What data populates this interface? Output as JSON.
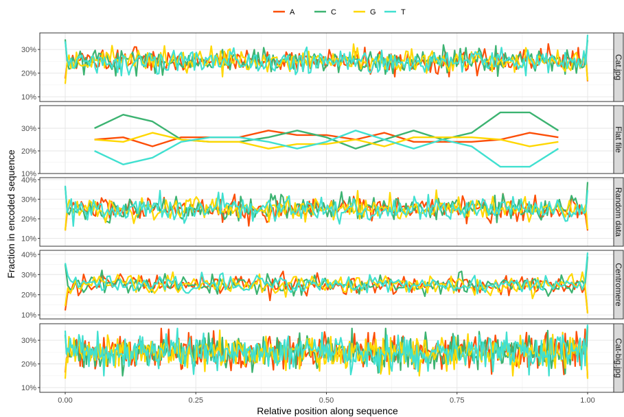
{
  "chart_data": {
    "type": "line",
    "xlabel": "Relative position along sequence",
    "ylabel": "Fraction in encoded sequence",
    "x_ticks": [
      "0.00",
      "0.25",
      "0.50",
      "0.75",
      "1.00"
    ],
    "xlim": [
      0,
      1
    ],
    "legend_position": "top",
    "grid": true,
    "series_names": [
      "A",
      "C",
      "G",
      "T"
    ],
    "colors": {
      "A": "#FC4E07",
      "C": "#3CB371",
      "G": "#FFD700",
      "T": "#40E0D0"
    },
    "panels": [
      {
        "label": "Cat.jpg",
        "ylim": [
          0.08,
          0.37
        ],
        "y_ticks": [
          "10%",
          "20%",
          "30%"
        ],
        "y_tick_values": [
          0.1,
          0.2,
          0.3
        ],
        "noisy": true,
        "n_points": 280,
        "mean": 0.25,
        "spread": 0.025,
        "range": [
          0.13,
          0.37
        ]
      },
      {
        "label": "Flat file",
        "ylim": [
          0.1,
          0.4
        ],
        "y_ticks": [
          "10%",
          "20%",
          "30%"
        ],
        "y_tick_values": [
          0.1,
          0.2,
          0.3
        ],
        "noisy": false,
        "x": [
          0.056,
          0.111,
          0.167,
          0.222,
          0.278,
          0.333,
          0.389,
          0.444,
          0.5,
          0.556,
          0.611,
          0.667,
          0.722,
          0.778,
          0.833,
          0.889,
          0.944
        ],
        "series": [
          {
            "name": "A",
            "values": [
              0.25,
              0.26,
              0.22,
              0.26,
              0.26,
              0.26,
              0.29,
              0.27,
              0.27,
              0.25,
              0.28,
              0.24,
              0.24,
              0.24,
              0.25,
              0.28,
              0.26
            ]
          },
          {
            "name": "C",
            "values": [
              0.3,
              0.36,
              0.33,
              0.25,
              0.24,
              0.24,
              0.26,
              0.29,
              0.26,
              0.21,
              0.25,
              0.29,
              0.25,
              0.28,
              0.37,
              0.37,
              0.29
            ]
          },
          {
            "name": "G",
            "values": [
              0.25,
              0.24,
              0.28,
              0.25,
              0.24,
              0.24,
              0.21,
              0.23,
              0.23,
              0.25,
              0.22,
              0.26,
              0.26,
              0.26,
              0.25,
              0.22,
              0.24
            ]
          },
          {
            "name": "T",
            "values": [
              0.2,
              0.14,
              0.17,
              0.24,
              0.26,
              0.26,
              0.24,
              0.21,
              0.24,
              0.29,
              0.25,
              0.21,
              0.25,
              0.22,
              0.13,
              0.13,
              0.21
            ]
          }
        ]
      },
      {
        "label": "Random data",
        "ylim": [
          0.06,
          0.41
        ],
        "y_ticks": [
          "10%",
          "20%",
          "30%",
          "40%"
        ],
        "y_tick_values": [
          0.1,
          0.2,
          0.3,
          0.4
        ],
        "noisy": true,
        "n_points": 260,
        "mean": 0.25,
        "spread": 0.03,
        "range": [
          0.14,
          0.4
        ]
      },
      {
        "label": "Centromere",
        "ylim": [
          0.08,
          0.42
        ],
        "y_ticks": [
          "10%",
          "20%",
          "30%",
          "40%"
        ],
        "y_tick_values": [
          0.1,
          0.2,
          0.3,
          0.4
        ],
        "noisy": true,
        "n_points": 200,
        "mean": 0.25,
        "spread": 0.025,
        "range": [
          0.09,
          0.41
        ]
      },
      {
        "label": "Cat-big.jpg",
        "ylim": [
          0.08,
          0.37
        ],
        "y_ticks": [
          "10%",
          "20%",
          "30%"
        ],
        "y_tick_values": [
          0.1,
          0.2,
          0.3
        ],
        "noisy": true,
        "n_points": 420,
        "mean": 0.25,
        "spread": 0.035,
        "range": [
          0.13,
          0.37
        ]
      }
    ]
  }
}
